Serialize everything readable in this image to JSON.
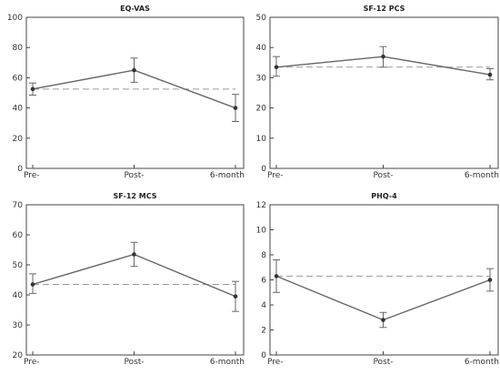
{
  "chart_data": [
    {
      "type": "line",
      "title": "EQ-VAS",
      "categories": [
        "Pre-",
        "Post-",
        "6-month"
      ],
      "ylim": [
        0,
        100
      ],
      "yticks": [
        0,
        20,
        40,
        60,
        80,
        100
      ],
      "series": [
        {
          "values": [
            52.5,
            65,
            40
          ],
          "error_low": [
            48.5,
            57,
            31
          ],
          "error_high": [
            56.5,
            73,
            49
          ]
        }
      ],
      "reference_line": 52.5,
      "grid": false
    },
    {
      "type": "line",
      "title": "SF-12 PCS",
      "categories": [
        "Pre-",
        "Post-",
        "6-month"
      ],
      "ylim": [
        0,
        50
      ],
      "yticks": [
        0,
        10,
        20,
        30,
        40,
        50
      ],
      "series": [
        {
          "values": [
            33.5,
            37,
            31
          ],
          "error_low": [
            30.5,
            33.5,
            29.3
          ],
          "error_high": [
            37,
            40.3,
            33
          ]
        }
      ],
      "reference_line": 33.5,
      "grid": false
    },
    {
      "type": "line",
      "title": "SF-12 MCS",
      "categories": [
        "Pre-",
        "Post-",
        "6-month"
      ],
      "ylim": [
        20,
        70
      ],
      "yticks": [
        20,
        30,
        40,
        50,
        60,
        70
      ],
      "series": [
        {
          "values": [
            43.5,
            53.5,
            39.5
          ],
          "error_low": [
            40.5,
            49.5,
            34.5
          ],
          "error_high": [
            47,
            57.5,
            44.5
          ]
        }
      ],
      "reference_line": 43.5,
      "grid": false
    },
    {
      "type": "line",
      "title": "PHQ-4",
      "categories": [
        "Pre-",
        "Post-",
        "6-month"
      ],
      "ylim": [
        0,
        12
      ],
      "yticks": [
        0,
        2,
        4,
        6,
        8,
        10,
        12
      ],
      "series": [
        {
          "values": [
            6.3,
            2.8,
            6.0
          ],
          "error_low": [
            5.0,
            2.2,
            5.1
          ],
          "error_high": [
            7.6,
            3.4,
            6.9
          ]
        }
      ],
      "reference_line": 6.3,
      "grid": false
    }
  ],
  "colors": {
    "line": "#666666",
    "marker": "#333333",
    "reference": "#999999",
    "axis": "#444444"
  }
}
